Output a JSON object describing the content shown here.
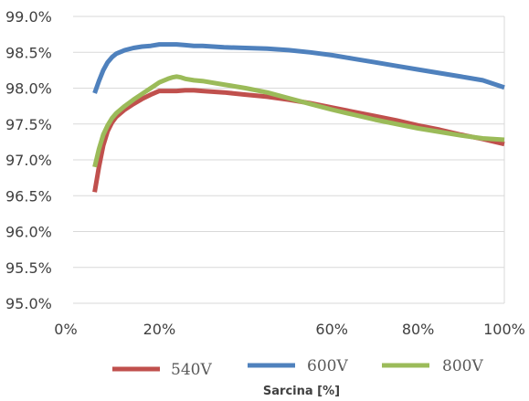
{
  "chart_data": {
    "type": "line",
    "title": "",
    "xlabel": "Sarcina [%]",
    "ylabel": "",
    "xlim": [
      0,
      100
    ],
    "ylim": [
      95.0,
      99.0
    ],
    "y_ticks": [
      "99.0%",
      "98.5%",
      "98.0%",
      "97.5%",
      "97.0%",
      "96.5%",
      "96.0%",
      "95.5%",
      "95.0%"
    ],
    "y_tick_values": [
      99.0,
      98.5,
      98.0,
      97.5,
      97.0,
      96.5,
      96.0,
      95.5,
      95.0
    ],
    "x_ticks": [
      "0%",
      "20%",
      "60%",
      "80%",
      "100%"
    ],
    "x_tick_values": [
      0,
      20,
      60,
      80,
      100
    ],
    "grid": "horizontal",
    "legend_position": "bottom",
    "series": [
      {
        "name": "540V",
        "color": "#c0504d",
        "x": [
          5,
          6,
          7,
          8,
          9,
          10,
          12,
          14,
          16,
          18,
          20,
          22,
          24,
          26,
          28,
          30,
          35,
          40,
          45,
          50,
          55,
          60,
          65,
          70,
          75,
          80,
          85,
          90,
          95,
          100
        ],
        "y": [
          96.55,
          96.9,
          97.2,
          97.4,
          97.52,
          97.6,
          97.7,
          97.78,
          97.85,
          97.91,
          97.96,
          97.96,
          97.96,
          97.97,
          97.97,
          97.96,
          97.94,
          97.91,
          97.88,
          97.84,
          97.79,
          97.73,
          97.67,
          97.61,
          97.55,
          97.48,
          97.42,
          97.35,
          97.29,
          97.22
        ]
      },
      {
        "name": "600V",
        "color": "#4f81bd",
        "x": [
          5,
          6,
          7,
          8,
          9,
          10,
          12,
          14,
          16,
          18,
          20,
          22,
          24,
          26,
          28,
          30,
          35,
          40,
          45,
          50,
          55,
          60,
          65,
          70,
          75,
          80,
          85,
          90,
          95,
          100
        ],
        "y": [
          97.93,
          98.1,
          98.25,
          98.36,
          98.43,
          98.48,
          98.53,
          98.56,
          98.58,
          98.59,
          98.61,
          98.61,
          98.61,
          98.6,
          98.59,
          98.59,
          98.57,
          98.56,
          98.55,
          98.53,
          98.5,
          98.46,
          98.41,
          98.36,
          98.31,
          98.26,
          98.21,
          98.16,
          98.11,
          98.01
        ]
      },
      {
        "name": "800V",
        "color": "#9bbb59",
        "x": [
          5,
          6,
          7,
          8,
          9,
          10,
          12,
          14,
          16,
          18,
          20,
          22,
          23,
          24,
          25,
          26,
          28,
          30,
          35,
          40,
          45,
          50,
          55,
          60,
          65,
          70,
          75,
          80,
          85,
          90,
          95,
          100
        ],
        "y": [
          96.9,
          97.15,
          97.35,
          97.48,
          97.58,
          97.65,
          97.75,
          97.84,
          97.92,
          98.0,
          98.08,
          98.13,
          98.15,
          98.16,
          98.15,
          98.13,
          98.11,
          98.1,
          98.05,
          98.0,
          97.94,
          97.86,
          97.78,
          97.7,
          97.63,
          97.56,
          97.5,
          97.44,
          97.39,
          97.34,
          97.3,
          97.28
        ]
      }
    ]
  }
}
